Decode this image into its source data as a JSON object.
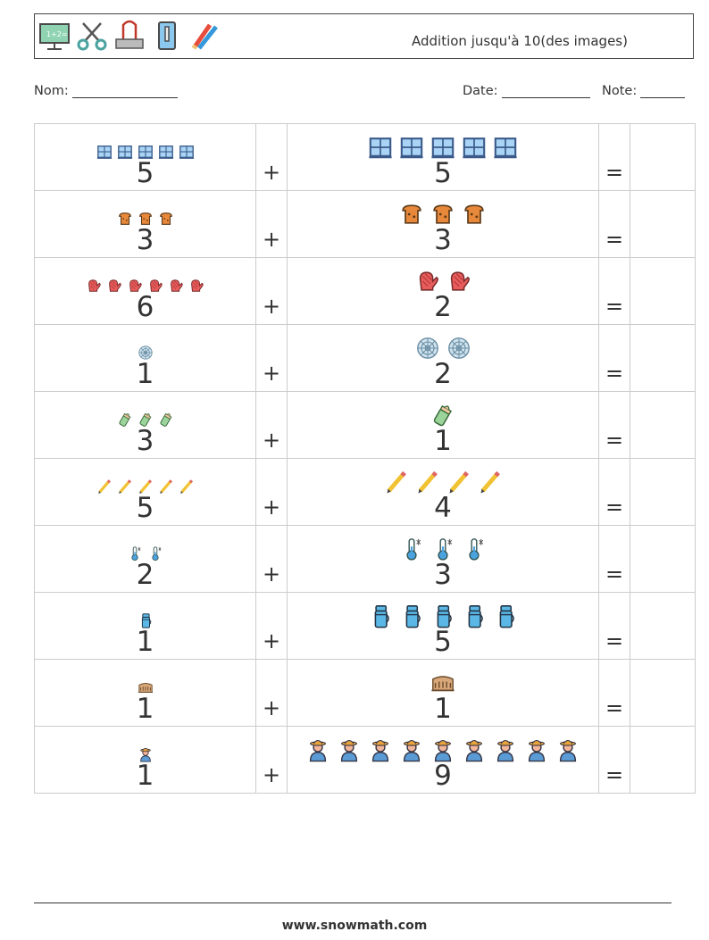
{
  "header": {
    "title": "Addition jusqu'à 10(des images)",
    "icons": [
      "chalkboard-icon",
      "scissors-icon",
      "binder-clip-icon",
      "pencil-sharpener-icon",
      "pencils-icon"
    ]
  },
  "fields": {
    "name_label": "Nom:",
    "date_label": "Date:",
    "score_label": "Note:"
  },
  "operators": {
    "plus": "+",
    "equals": "="
  },
  "rows": [
    {
      "a": 5,
      "a_icon": "window-icon",
      "b": 5,
      "b_icon": "window-icon"
    },
    {
      "a": 3,
      "a_icon": "toast-icon",
      "b": 3,
      "b_icon": "toast-icon"
    },
    {
      "a": 6,
      "a_icon": "oven-mitt-icon",
      "b": 2,
      "b_icon": "oven-mitt-icon"
    },
    {
      "a": 1,
      "a_icon": "spider-web-icon",
      "b": 2,
      "b_icon": "spider-web-icon"
    },
    {
      "a": 3,
      "a_icon": "baby-bottle-icon",
      "b": 1,
      "b_icon": "baby-bottle-icon"
    },
    {
      "a": 5,
      "a_icon": "pencil-icon",
      "b": 4,
      "b_icon": "pencil-icon"
    },
    {
      "a": 2,
      "a_icon": "thermometer-icon",
      "b": 3,
      "b_icon": "thermometer-icon"
    },
    {
      "a": 1,
      "a_icon": "thermos-icon",
      "b": 5,
      "b_icon": "thermos-icon"
    },
    {
      "a": 1,
      "a_icon": "colosseum-icon",
      "b": 1,
      "b_icon": "colosseum-icon"
    },
    {
      "a": 1,
      "a_icon": "farmer-icon",
      "b": 9,
      "b_icon": "farmer-icon"
    }
  ],
  "footer": {
    "url": "www.snowmath.com"
  }
}
